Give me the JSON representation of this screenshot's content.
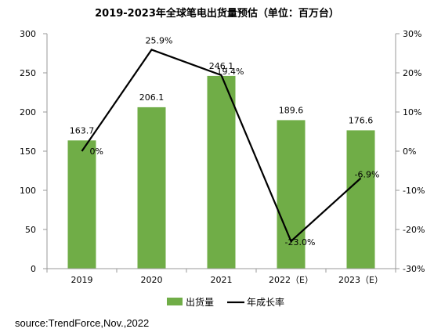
{
  "chart_data": {
    "type": "bar",
    "title": "2019-2023年全球笔电出货量预估（单位：百万台）",
    "categories": [
      "2019",
      "2020",
      "2021",
      "2022（E）",
      "2023（E）"
    ],
    "series": [
      {
        "name": "出货量",
        "type": "bar",
        "axis": "left",
        "color": "#70ad47",
        "values": [
          163.7,
          206.1,
          246.1,
          189.6,
          176.6
        ],
        "labels": [
          "163.7",
          "206.1",
          "246.1",
          "189.6",
          "176.6"
        ]
      },
      {
        "name": "年成长率",
        "type": "line",
        "axis": "right",
        "color": "#000000",
        "values": [
          0,
          25.9,
          19.4,
          -23.0,
          -6.9
        ],
        "labels": [
          "0%",
          "25.9%",
          "19.4%",
          "-23.0%",
          "-6.9%"
        ]
      }
    ],
    "y_left": {
      "ylim": [
        0,
        300
      ],
      "ticks": [
        "0",
        "50",
        "100",
        "150",
        "200",
        "250",
        "300"
      ]
    },
    "y_right": {
      "ylim": [
        -30,
        30
      ],
      "ticks": [
        "-30%",
        "-20%",
        "-10%",
        "0%",
        "10%",
        "20%",
        "30%"
      ]
    },
    "grid": false,
    "legend_position": "bottom"
  },
  "source": "source:TrendForce,Nov.,2022"
}
